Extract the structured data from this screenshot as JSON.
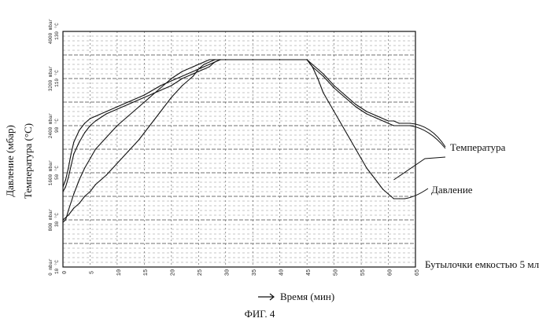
{
  "chart_data": {
    "type": "line",
    "xlabel": "Время (мин)",
    "ylabel_pressure": "Давление (мбар)",
    "ylabel_temperature": "Температура (°C)",
    "xlim": [
      0,
      65
    ],
    "x_ticks": [
      "0",
      "5",
      "10",
      "15",
      "20",
      "25",
      "30",
      "35",
      "40",
      "45",
      "50",
      "55",
      "60",
      "65"
    ],
    "y_ticks_pressure": [
      "0 mbar",
      "800 mbar",
      "1600 mbar",
      "2400 mbar",
      "3200 mbar",
      "4000 mbar"
    ],
    "y_ticks_temperature": [
      "10 °C",
      "30 °C",
      "50 °C",
      "90 °C",
      "110 °C",
      "130 °C"
    ],
    "ylim_fraction": [
      0,
      1
    ],
    "grid": true,
    "annotations": [
      "Температура",
      "Давление",
      "Бутылочки емкостью 5 мл"
    ],
    "caption": "ФИГ. 4",
    "series": [
      {
        "name": "Температура",
        "color": "#111111",
        "x": [
          0,
          0.5,
          1,
          1.5,
          2,
          3,
          4,
          5,
          6,
          8,
          10,
          12,
          15,
          18,
          20,
          22,
          24,
          26,
          27,
          28,
          29,
          30,
          35,
          40,
          45,
          46,
          48,
          50,
          52,
          54,
          56,
          58,
          60,
          61,
          62,
          64
        ],
        "y": [
          0.34,
          0.37,
          0.42,
          0.48,
          0.53,
          0.58,
          0.61,
          0.63,
          0.64,
          0.66,
          0.68,
          0.7,
          0.73,
          0.77,
          0.79,
          0.81,
          0.83,
          0.85,
          0.86,
          0.87,
          0.88,
          0.88,
          0.88,
          0.88,
          0.88,
          0.86,
          0.82,
          0.77,
          0.73,
          0.69,
          0.66,
          0.64,
          0.62,
          0.62,
          0.61,
          0.61
        ]
      },
      {
        "name": "Температура",
        "color": "#111111",
        "x": [
          0,
          0.5,
          1,
          1.5,
          2,
          3,
          4,
          5,
          6,
          8,
          10,
          12,
          15,
          18,
          20,
          22,
          24,
          26,
          27,
          28,
          29,
          30,
          35,
          40,
          45,
          46,
          48,
          50,
          52,
          54,
          56,
          58,
          60,
          61,
          62,
          64
        ],
        "y": [
          0.32,
          0.34,
          0.38,
          0.43,
          0.48,
          0.53,
          0.57,
          0.6,
          0.62,
          0.65,
          0.67,
          0.69,
          0.72,
          0.75,
          0.77,
          0.8,
          0.82,
          0.84,
          0.85,
          0.87,
          0.88,
          0.88,
          0.88,
          0.88,
          0.88,
          0.85,
          0.81,
          0.76,
          0.72,
          0.68,
          0.65,
          0.63,
          0.61,
          0.6,
          0.6,
          0.6
        ]
      },
      {
        "name": "",
        "color": "#111111",
        "x": [
          0,
          0.5,
          1,
          2,
          3,
          4,
          5,
          6,
          8,
          10,
          12,
          14,
          16,
          18,
          20,
          22,
          24,
          25,
          26,
          27,
          28,
          29,
          30,
          35,
          40,
          45
        ],
        "y": [
          0.19,
          0.2,
          0.24,
          0.31,
          0.37,
          0.42,
          0.46,
          0.5,
          0.55,
          0.6,
          0.64,
          0.68,
          0.72,
          0.76,
          0.8,
          0.83,
          0.85,
          0.86,
          0.87,
          0.88,
          0.88,
          0.88,
          0.88,
          0.88,
          0.88,
          0.88
        ]
      },
      {
        "name": "Давление",
        "color": "#111111",
        "x": [
          0,
          1,
          2,
          3,
          4,
          5,
          6,
          8,
          10,
          12,
          14,
          16,
          18,
          20,
          22,
          24,
          25,
          26,
          27,
          28,
          29,
          30,
          35,
          40,
          45,
          46,
          47,
          48,
          49,
          50,
          51,
          52,
          53,
          54,
          55,
          56,
          57,
          58,
          59,
          60,
          60.5,
          61,
          62,
          63
        ],
        "y": [
          0.2,
          0.22,
          0.25,
          0.27,
          0.3,
          0.32,
          0.35,
          0.39,
          0.44,
          0.49,
          0.54,
          0.6,
          0.66,
          0.72,
          0.77,
          0.81,
          0.84,
          0.86,
          0.87,
          0.88,
          0.88,
          0.88,
          0.88,
          0.88,
          0.88,
          0.85,
          0.8,
          0.74,
          0.7,
          0.66,
          0.62,
          0.58,
          0.54,
          0.5,
          0.46,
          0.42,
          0.39,
          0.36,
          0.33,
          0.31,
          0.3,
          0.29,
          0.29,
          0.29
        ]
      }
    ]
  }
}
